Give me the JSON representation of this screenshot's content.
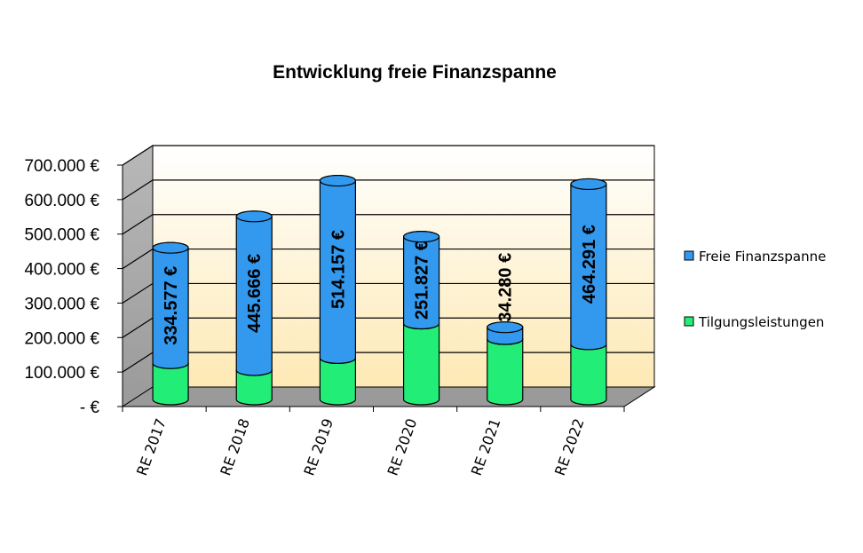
{
  "chart_data": {
    "type": "bar",
    "stacked": true,
    "style": "3d-cylinder",
    "title": "Entwicklung freie Finanzspanne",
    "xlabel": "",
    "ylabel": "",
    "categories": [
      "RE 2017",
      "RE 2018",
      "RE 2019",
      "RE 2020",
      "RE 2021",
      "RE 2022"
    ],
    "series": [
      {
        "name": "Tilgungsleistungen",
        "color": "#22ee77",
        "values": [
          105000,
          85000,
          120000,
          220000,
          175000,
          160000
        ]
      },
      {
        "name": "Freie Finanzspanne",
        "color": "#3399ee",
        "values": [
          334577,
          445666,
          514157,
          251827,
          34280,
          464291
        ]
      }
    ],
    "data_labels": [
      "334.577 €",
      "445.666 €",
      "514.157 €",
      "251.827 €",
      "34.280 €",
      "464.291 €"
    ],
    "y_ticks": [
      0,
      100000,
      200000,
      300000,
      400000,
      500000,
      600000,
      700000
    ],
    "y_tick_labels": [
      "-  €",
      "100.000 €",
      "200.000 €",
      "300.000 €",
      "400.000 €",
      "500.000 €",
      "600.000 €",
      "700.000 €"
    ],
    "ylim": [
      0,
      700000
    ],
    "grid": true,
    "legend_position": "right"
  }
}
